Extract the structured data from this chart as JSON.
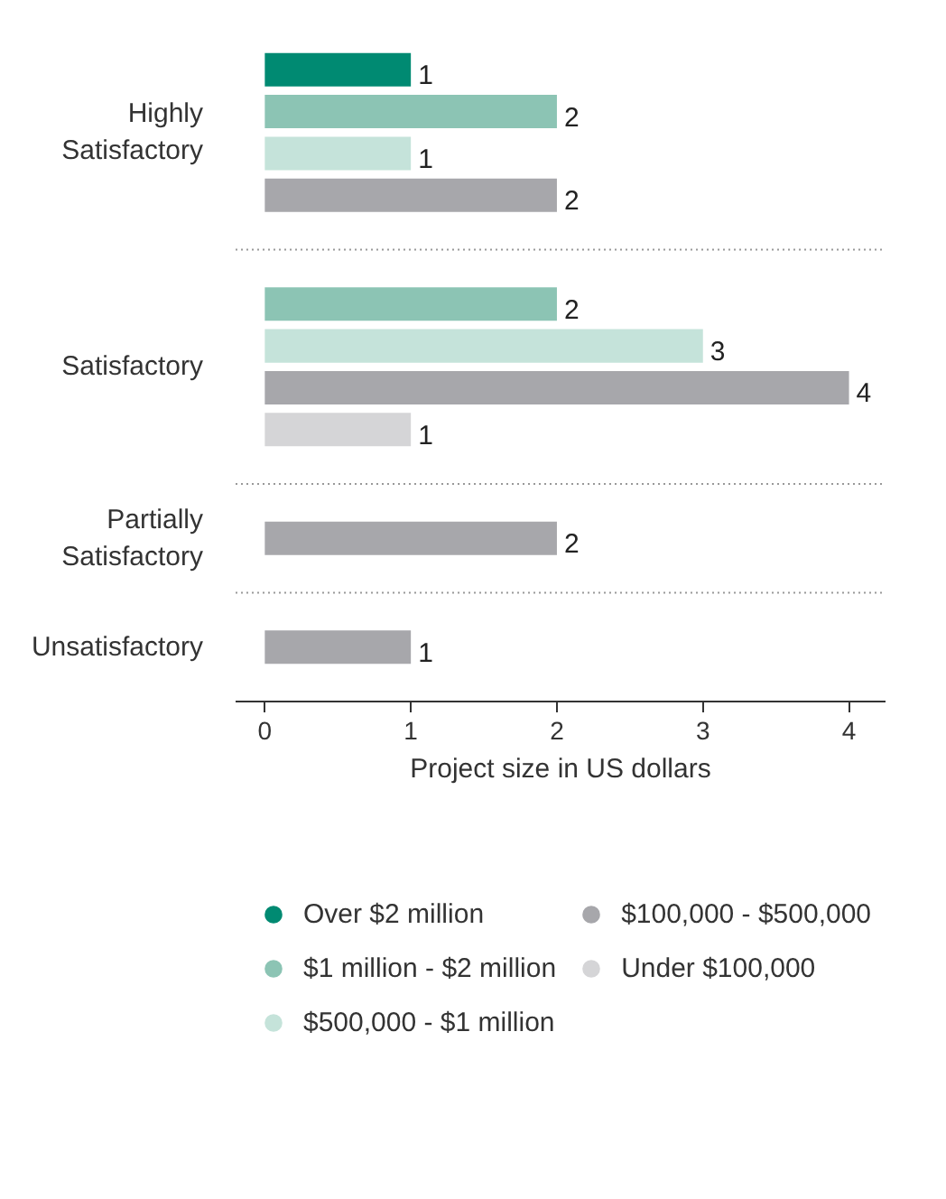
{
  "chart_data": {
    "type": "bar",
    "orientation": "horizontal",
    "xlabel": "Project size in US dollars",
    "categories": [
      "Highly Satisfactory",
      "Satisfactory",
      "Partially Satisfactory",
      "Unsatisfactory"
    ],
    "series": [
      {
        "name": "Over $2 million",
        "color": "#008a72",
        "values": [
          1,
          null,
          null,
          null
        ]
      },
      {
        "name": "$1 million - $2 million",
        "color": "#8cc4b4",
        "values": [
          2,
          2,
          null,
          null
        ]
      },
      {
        "name": "$500,000 - $1 million",
        "color": "#c5e3da",
        "values": [
          1,
          3,
          null,
          null
        ]
      },
      {
        "name": "$100,000 - $500,000",
        "color": "#a7a7ab",
        "values": [
          2,
          4,
          2,
          1
        ]
      },
      {
        "name": "Under $100,000",
        "color": "#d5d5d7",
        "values": [
          null,
          1,
          null,
          null
        ]
      }
    ],
    "xlim": [
      -0.2,
      4.25
    ],
    "xticks": [
      0,
      1,
      2,
      3,
      4
    ],
    "data_labels": true,
    "legend": "bottom"
  }
}
